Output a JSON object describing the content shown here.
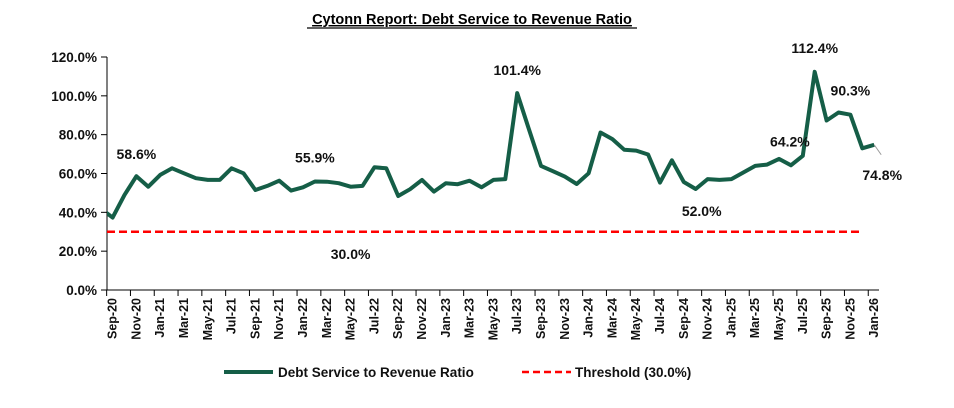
{
  "chart_data": {
    "type": "line",
    "title": "Cytonn Report: Debt Service to Revenue Ratio",
    "xlabel": "",
    "ylabel": "",
    "ylim": [
      0,
      120
    ],
    "yticks": [
      0,
      20,
      40,
      60,
      80,
      100,
      120
    ],
    "ytick_labels": [
      "0.0%",
      "20.0%",
      "40.0%",
      "60.0%",
      "80.0%",
      "100.0%",
      "120.0%"
    ],
    "grid": false,
    "legend_position": "bottom",
    "lead_in": {
      "x": "Aug-20",
      "value": 42.0
    },
    "x": [
      "Sep-20",
      "Oct-20",
      "Nov-20",
      "Dec-20",
      "Jan-21",
      "Feb-21",
      "Mar-21",
      "Apr-21",
      "May-21",
      "Jun-21",
      "Jul-21",
      "Aug-21",
      "Sep-21",
      "Oct-21",
      "Nov-21",
      "Dec-21",
      "Jan-22",
      "Feb-22",
      "Mar-22",
      "Apr-22",
      "May-22",
      "Jun-22",
      "Jul-22",
      "Aug-22",
      "Sep-22",
      "Oct-22",
      "Nov-22",
      "Dec-22",
      "Jan-23",
      "Feb-23",
      "Mar-23",
      "Apr-23",
      "May-23",
      "Jun-23",
      "Jul-23",
      "Aug-23",
      "Sep-23",
      "Oct-23",
      "Nov-23",
      "Dec-23",
      "Jan-24",
      "Feb-24",
      "Mar-24",
      "Apr-24",
      "May-24",
      "Jun-24",
      "Jul-24",
      "Aug-24",
      "Sep-24",
      "Oct-24",
      "Nov-24",
      "Dec-24",
      "Jan-25",
      "Feb-25",
      "Mar-25",
      "Apr-25",
      "May-25",
      "Jun-25",
      "Jul-25",
      "Aug-25",
      "Sep-25",
      "Oct-25",
      "Nov-25",
      "Dec-25",
      "Jan-26"
    ],
    "xtick_labels": [
      "Sep-20",
      "Nov-20",
      "Jan-21",
      "Mar-21",
      "May-21",
      "Jul-21",
      "Sep-21",
      "Nov-21",
      "Jan-22",
      "Mar-22",
      "May-22",
      "Jul-22",
      "Sep-22",
      "Nov-22",
      "Jan-23",
      "Mar-23",
      "May-23",
      "Jul-23",
      "Sep-23",
      "Nov-23",
      "Jan-24",
      "Mar-24",
      "May-24",
      "Jul-24",
      "Sep-24",
      "Nov-24",
      "Jan-25",
      "Mar-25",
      "May-25",
      "Jul-25",
      "Sep-25",
      "Nov-25",
      "Jan-26"
    ],
    "series": [
      {
        "name": "Debt Service to Revenue Ratio",
        "color": "#155E47",
        "style": "solid",
        "values": [
          37.3,
          49.0,
          58.6,
          53.2,
          59.3,
          62.7,
          60.1,
          57.6,
          56.7,
          56.7,
          62.7,
          60.1,
          51.5,
          53.6,
          56.3,
          51.2,
          52.9,
          55.9,
          55.8,
          55.0,
          53.2,
          53.6,
          63.2,
          62.7,
          48.4,
          51.9,
          56.7,
          50.7,
          55.0,
          54.5,
          56.3,
          52.9,
          56.7,
          57.1,
          101.4,
          82.5,
          63.9,
          61.2,
          58.4,
          54.6,
          60.1,
          81.1,
          77.7,
          72.2,
          71.8,
          69.8,
          55.3,
          66.8,
          55.6,
          52.0,
          57.1,
          56.7,
          57.1,
          60.5,
          63.9,
          64.6,
          67.5,
          64.2,
          69.1,
          112.4,
          87.3,
          91.4,
          90.3,
          73.0,
          74.8
        ]
      },
      {
        "name": "Threshold (30.0%)",
        "color": "#FF0000",
        "style": "dashed",
        "value": 30.0,
        "start": "Sep-20",
        "end": "Dec-25"
      }
    ],
    "annotations": [
      {
        "x": "Nov-20",
        "text": "58.6%",
        "position": "above"
      },
      {
        "x": "Feb-22",
        "text": "55.9%",
        "position": "above"
      },
      {
        "x": "May-22",
        "text": "30.0%",
        "position": "below-threshold"
      },
      {
        "x": "Jul-23",
        "text": "101.4%",
        "position": "above"
      },
      {
        "x": "Oct-24",
        "text": "52.0%",
        "position": "below"
      },
      {
        "x": "Jun-25",
        "text": "64.2%",
        "position": "above"
      },
      {
        "x": "Aug-25",
        "text": "112.4%",
        "position": "above"
      },
      {
        "x": "Nov-25",
        "text": "90.3%",
        "position": "above"
      },
      {
        "x": "Jan-26",
        "text": "74.8%",
        "position": "below-right"
      }
    ]
  },
  "legend": {
    "series1": "Debt Service to Revenue Ratio",
    "series2": "Threshold (30.0%)"
  }
}
